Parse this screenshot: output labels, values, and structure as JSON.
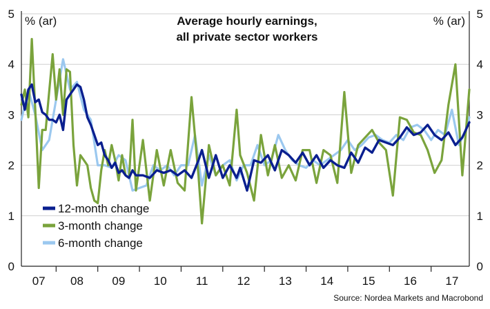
{
  "chart_data": {
    "type": "line",
    "title_lines": [
      "Average hourly earnings,",
      "all private sector workers"
    ],
    "left_unit": "% (ar)",
    "right_unit": "% (ar)",
    "ylim": [
      0,
      5
    ],
    "y_ticks": [
      "0",
      "1",
      "2",
      "3",
      "4",
      "5"
    ],
    "x_start": "2007-03",
    "x_end": "2017-12",
    "x_tick_labels": [
      "07",
      "08",
      "09",
      "10",
      "11",
      "12",
      "13",
      "14",
      "15",
      "16",
      "17"
    ],
    "grid": "horizontal",
    "legend_position": "bottom-left",
    "source": "Source: Nordea Markets and Macrobond",
    "series": [
      {
        "name": "12-month change",
        "color": "#0a1f8f",
        "x": [
          "2007-03",
          "2007-04",
          "2007-05",
          "2007-06",
          "2007-07",
          "2007-08",
          "2007-09",
          "2007-10",
          "2007-11",
          "2007-12",
          "2008-01",
          "2008-02",
          "2008-03",
          "2008-04",
          "2008-05",
          "2008-06",
          "2008-07",
          "2008-08",
          "2008-09",
          "2008-10",
          "2008-11",
          "2008-12",
          "2009-01",
          "2009-02",
          "2009-03",
          "2009-04",
          "2009-05",
          "2009-06",
          "2009-07",
          "2009-08",
          "2009-09",
          "2009-10",
          "2009-11",
          "2009-12",
          "2010-02",
          "2010-04",
          "2010-06",
          "2010-08",
          "2010-10",
          "2010-12",
          "2011-02",
          "2011-04",
          "2011-06",
          "2011-07",
          "2011-09",
          "2011-11",
          "2012-01",
          "2012-03",
          "2012-05",
          "2012-06",
          "2012-08",
          "2012-10",
          "2012-12",
          "2013-02",
          "2013-04",
          "2013-06",
          "2013-08",
          "2013-10",
          "2013-12",
          "2014-02",
          "2014-04",
          "2014-06",
          "2014-08",
          "2014-10",
          "2014-12",
          "2015-02",
          "2015-04",
          "2015-06",
          "2015-08",
          "2015-10",
          "2015-12",
          "2016-02",
          "2016-04",
          "2016-06",
          "2016-08",
          "2016-10",
          "2016-12",
          "2017-02",
          "2017-04",
          "2017-06",
          "2017-08",
          "2017-10",
          "2017-12"
        ],
        "y": [
          3.4,
          3.1,
          3.5,
          3.6,
          3.25,
          3.3,
          3.05,
          3.0,
          2.9,
          2.9,
          2.85,
          3.0,
          2.7,
          3.3,
          3.4,
          3.5,
          3.6,
          3.55,
          3.3,
          2.95,
          2.8,
          2.6,
          2.4,
          2.45,
          2.2,
          2.1,
          1.95,
          2.05,
          1.85,
          1.9,
          1.8,
          1.75,
          1.9,
          1.8,
          1.8,
          1.75,
          1.9,
          1.85,
          1.9,
          1.8,
          1.9,
          1.75,
          2.1,
          2.3,
          1.75,
          2.2,
          1.75,
          2.0,
          1.75,
          1.95,
          1.5,
          2.1,
          2.05,
          2.2,
          1.9,
          2.3,
          2.2,
          2.05,
          2.25,
          2.0,
          2.2,
          1.95,
          2.1,
          2.0,
          1.95,
          2.25,
          2.05,
          2.35,
          2.25,
          2.5,
          2.45,
          2.4,
          2.55,
          2.75,
          2.6,
          2.65,
          2.8,
          2.6,
          2.5,
          2.65,
          2.4,
          2.55,
          2.85
        ]
      },
      {
        "name": "3-month change",
        "color": "#7aa33c",
        "x": [
          "2007-03",
          "2007-04",
          "2007-05",
          "2007-06",
          "2007-07",
          "2007-08",
          "2007-09",
          "2007-10",
          "2007-11",
          "2007-12",
          "2008-01",
          "2008-02",
          "2008-03",
          "2008-04",
          "2008-05",
          "2008-06",
          "2008-07",
          "2008-08",
          "2008-09",
          "2008-10",
          "2008-11",
          "2008-12",
          "2009-01",
          "2009-02",
          "2009-03",
          "2009-04",
          "2009-05",
          "2009-06",
          "2009-07",
          "2009-08",
          "2009-09",
          "2009-10",
          "2009-11",
          "2009-12",
          "2010-02",
          "2010-04",
          "2010-06",
          "2010-08",
          "2010-10",
          "2010-12",
          "2011-02",
          "2011-04",
          "2011-06",
          "2011-07",
          "2011-09",
          "2011-11",
          "2012-01",
          "2012-03",
          "2012-05",
          "2012-06",
          "2012-08",
          "2012-10",
          "2012-12",
          "2013-02",
          "2013-04",
          "2013-06",
          "2013-08",
          "2013-10",
          "2013-12",
          "2014-02",
          "2014-04",
          "2014-06",
          "2014-08",
          "2014-10",
          "2014-12",
          "2015-02",
          "2015-04",
          "2015-06",
          "2015-08",
          "2015-10",
          "2015-12",
          "2016-02",
          "2016-04",
          "2016-06",
          "2016-08",
          "2016-10",
          "2016-12",
          "2017-02",
          "2017-04",
          "2017-06",
          "2017-08",
          "2017-10",
          "2017-12"
        ],
        "y": [
          3.2,
          3.5,
          2.95,
          4.5,
          3.1,
          1.55,
          2.7,
          2.7,
          3.45,
          4.2,
          3.3,
          3.9,
          3.0,
          3.9,
          3.85,
          2.4,
          1.6,
          2.2,
          2.1,
          2.0,
          1.55,
          1.3,
          1.25,
          1.9,
          2.3,
          2.0,
          2.4,
          2.1,
          1.7,
          2.2,
          1.8,
          1.75,
          2.9,
          1.5,
          2.5,
          1.3,
          2.3,
          1.6,
          2.3,
          1.65,
          1.5,
          3.35,
          1.8,
          0.85,
          2.4,
          1.8,
          2.0,
          1.6,
          3.1,
          2.2,
          1.85,
          1.3,
          2.6,
          1.8,
          2.4,
          1.75,
          2.0,
          1.7,
          2.3,
          2.3,
          1.65,
          2.3,
          2.2,
          1.65,
          3.45,
          1.85,
          2.4,
          2.55,
          2.7,
          2.45,
          2.3,
          1.4,
          2.95,
          2.9,
          2.65,
          2.6,
          2.3,
          1.85,
          2.1,
          3.2,
          4.0,
          1.8,
          3.5
        ]
      },
      {
        "name": "6-month change",
        "color": "#9bc8ef",
        "x": [
          "2007-03",
          "2007-05",
          "2007-07",
          "2007-09",
          "2007-11",
          "2008-01",
          "2008-03",
          "2008-05",
          "2008-07",
          "2008-09",
          "2008-11",
          "2009-01",
          "2009-03",
          "2009-05",
          "2009-07",
          "2009-09",
          "2009-11",
          "2010-01",
          "2010-03",
          "2010-05",
          "2010-07",
          "2010-09",
          "2010-11",
          "2011-01",
          "2011-03",
          "2011-05",
          "2011-07",
          "2011-09",
          "2011-11",
          "2012-01",
          "2012-03",
          "2012-05",
          "2012-07",
          "2012-09",
          "2012-11",
          "2013-01",
          "2013-03",
          "2013-05",
          "2013-07",
          "2013-09",
          "2013-11",
          "2014-01",
          "2014-03",
          "2014-05",
          "2014-07",
          "2014-09",
          "2014-11",
          "2015-01",
          "2015-03",
          "2015-05",
          "2015-07",
          "2015-09",
          "2015-11",
          "2016-01",
          "2016-03",
          "2016-05",
          "2016-07",
          "2016-09",
          "2016-11",
          "2017-01",
          "2017-03",
          "2017-05",
          "2017-07",
          "2017-09",
          "2017-11",
          "2017-12"
        ],
        "y": [
          2.9,
          3.5,
          3.0,
          2.3,
          2.5,
          3.3,
          4.1,
          3.5,
          3.65,
          3.1,
          2.9,
          2.0,
          2.0,
          1.95,
          2.2,
          2.1,
          1.5,
          1.55,
          1.6,
          2.0,
          1.9,
          2.0,
          1.8,
          2.0,
          2.0,
          2.6,
          1.6,
          2.2,
          1.8,
          2.0,
          2.1,
          1.7,
          2.0,
          2.0,
          2.4,
          2.0,
          2.1,
          2.6,
          2.3,
          2.1,
          2.0,
          1.95,
          2.1,
          2.0,
          2.1,
          2.2,
          2.3,
          2.5,
          2.3,
          2.4,
          2.55,
          2.6,
          2.5,
          2.45,
          2.6,
          2.5,
          2.75,
          2.8,
          2.7,
          2.5,
          2.7,
          2.6,
          3.1,
          2.4,
          2.7,
          2.95
        ]
      }
    ]
  }
}
